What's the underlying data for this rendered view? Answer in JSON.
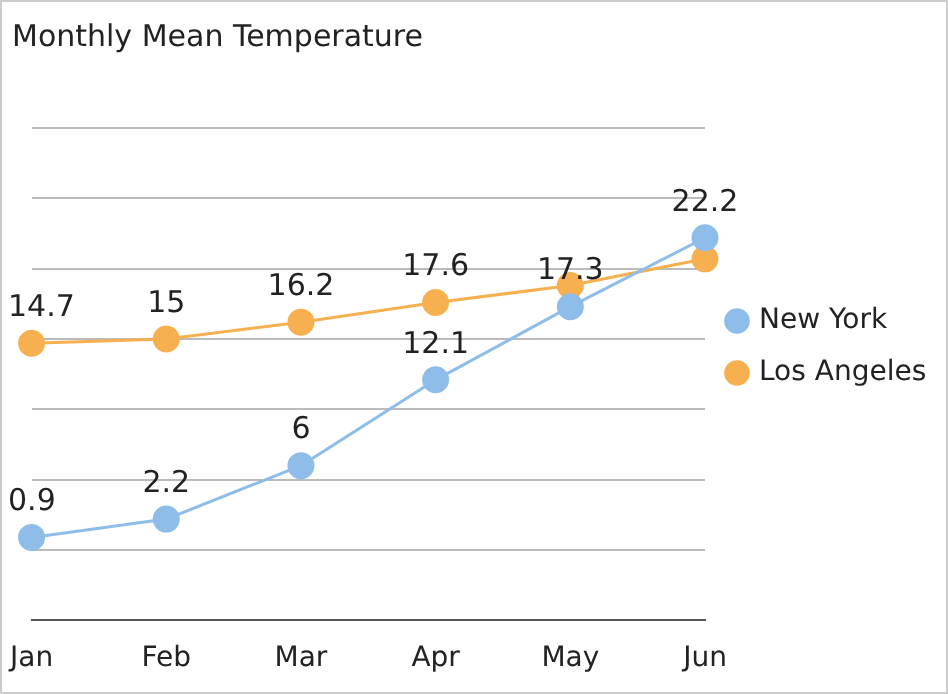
{
  "chart_data": {
    "type": "line",
    "title": "Monthly Mean Temperature",
    "categories": [
      "Jan",
      "Feb",
      "Mar",
      "Apr",
      "May",
      "Jun"
    ],
    "series": [
      {
        "name": "New York",
        "color": "#8dbde8",
        "values": [
          0.9,
          2.2,
          6,
          12.1,
          17.3,
          22.2
        ],
        "value_labels": [
          "0.9",
          "2.2",
          "6",
          "12.1",
          "17.3",
          "22.2"
        ]
      },
      {
        "name": "Los Angeles",
        "color": "#f6b04f",
        "values": [
          14.7,
          15,
          16.2,
          17.6,
          18.8,
          20.7
        ],
        "value_labels": [
          "14.7",
          "15",
          "16.2",
          "17.6",
          null,
          null
        ]
      }
    ],
    "ylim": [
      -5,
      30
    ],
    "yticks": [
      {
        "value": 0,
        "label": null
      },
      {
        "value": 5,
        "label": null
      },
      {
        "value": 10,
        "label": null
      },
      {
        "value": 15,
        "label": null
      },
      {
        "value": 20,
        "label": null
      },
      {
        "value": 25,
        "label": null
      },
      {
        "value": 30,
        "label": null
      }
    ],
    "tick_labels": "x",
    "grid": "y",
    "legend": "right",
    "marker": "circle",
    "line_style": "solid"
  }
}
